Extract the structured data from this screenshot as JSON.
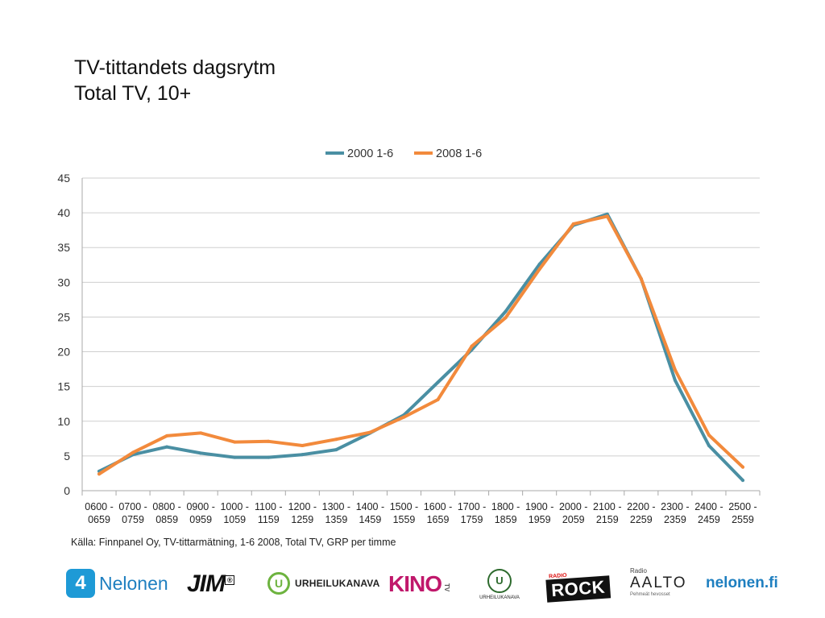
{
  "title": {
    "line1": "TV-tittandets dagsrytm",
    "line2": "Total TV, 10+"
  },
  "chart_data": {
    "type": "line",
    "title": "",
    "xlabel": "",
    "ylabel": "",
    "ylim": [
      0,
      45
    ],
    "yticks": [
      "0",
      "5",
      "10",
      "15",
      "20",
      "25",
      "30",
      "35",
      "40",
      "45"
    ],
    "grid": true,
    "legend": "top-center",
    "categories": [
      [
        "0600 -",
        "0659"
      ],
      [
        "0700 -",
        "0759"
      ],
      [
        "0800 -",
        "0859"
      ],
      [
        "0900 -",
        "0959"
      ],
      [
        "1000 -",
        "1059"
      ],
      [
        "1100 -",
        "1159"
      ],
      [
        "1200 -",
        "1259"
      ],
      [
        "1300 -",
        "1359"
      ],
      [
        "1400 -",
        "1459"
      ],
      [
        "1500 -",
        "1559"
      ],
      [
        "1600 -",
        "1659"
      ],
      [
        "1700 -",
        "1759"
      ],
      [
        "1800 -",
        "1859"
      ],
      [
        "1900 -",
        "1959"
      ],
      [
        "2000 -",
        "2059"
      ],
      [
        "2100 -",
        "2159"
      ],
      [
        "2200 -",
        "2259"
      ],
      [
        "2300 -",
        "2359"
      ],
      [
        "2400 -",
        "2459"
      ],
      [
        "2500 -",
        "2559"
      ]
    ],
    "series": [
      {
        "name": "2000 1-6",
        "color": "#4a8fa3",
        "values": [
          2.8,
          5.2,
          6.3,
          5.4,
          4.8,
          4.8,
          5.2,
          5.9,
          8.3,
          10.9,
          15.6,
          20.3,
          25.8,
          32.6,
          38.2,
          39.8,
          30.5,
          15.9,
          6.5,
          1.5
        ]
      },
      {
        "name": "2008 1-6",
        "color": "#f28a3c",
        "values": [
          2.4,
          5.5,
          7.9,
          8.3,
          7.0,
          7.1,
          6.5,
          7.4,
          8.4,
          10.6,
          13.1,
          20.8,
          24.9,
          31.9,
          38.4,
          39.5,
          30.5,
          17.4,
          8.0,
          3.4
        ]
      }
    ]
  },
  "source": "Källa: Finnpanel Oy, TV-tittarmätning, 1-6 2008, Total TV, GRP per timme",
  "logos": {
    "nelonen_badge": "4",
    "nelonen": "Nelonen",
    "jim": "JIM",
    "jim_mark": "®",
    "urheilukanava": "URHEILUKANAVA",
    "urheilukanava_mark": "U",
    "kino": "KINO",
    "kino_mark": "TV",
    "urheilukanava_hd_mark": "U",
    "urheilukanava_hd": "URHEILUKANAVA",
    "rock_radio": "RADIO",
    "rock": "ROCK",
    "aalto_radio": "Radio",
    "aalto": "AALTO",
    "aalto_sub": "Pehmeät hevosset",
    "nelonen_fi": "nelonen.fi"
  }
}
